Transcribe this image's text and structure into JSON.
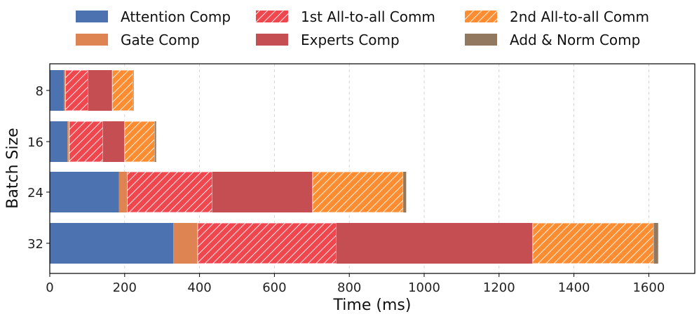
{
  "chart_data": {
    "type": "bar",
    "orientation": "horizontal",
    "stacked": true,
    "title": "",
    "xlabel": "Time (ms)",
    "ylabel": "Batch Size",
    "xlim": [
      0,
      1700
    ],
    "xticks": [
      0,
      200,
      400,
      600,
      800,
      1000,
      1200,
      1400,
      1600
    ],
    "categories": [
      "8",
      "16",
      "24",
      "32"
    ],
    "grid": "vertical dashed",
    "legend_position": "top, 3 columns",
    "series": [
      {
        "name": "Attention Comp",
        "color": "#4c72b0",
        "hatch": false,
        "values": [
          38,
          47,
          185,
          330
        ]
      },
      {
        "name": "Gate Comp",
        "color": "#dd8452",
        "hatch": false,
        "values": [
          4,
          5,
          22,
          65
        ]
      },
      {
        "name": "1st All-to-all Comm",
        "color": "#f0474f",
        "hatch": true,
        "values": [
          60,
          90,
          227,
          370
        ]
      },
      {
        "name": "Experts Comp",
        "color": "#c44e52",
        "hatch": false,
        "values": [
          65,
          58,
          268,
          525
        ]
      },
      {
        "name": "2nd All-to-all Comm",
        "color": "#fd8d30",
        "hatch": true,
        "values": [
          55,
          80,
          242,
          323
        ]
      },
      {
        "name": "Add & Norm Comp",
        "color": "#937860",
        "hatch": false,
        "values": [
          2,
          4,
          8,
          12
        ]
      }
    ]
  }
}
